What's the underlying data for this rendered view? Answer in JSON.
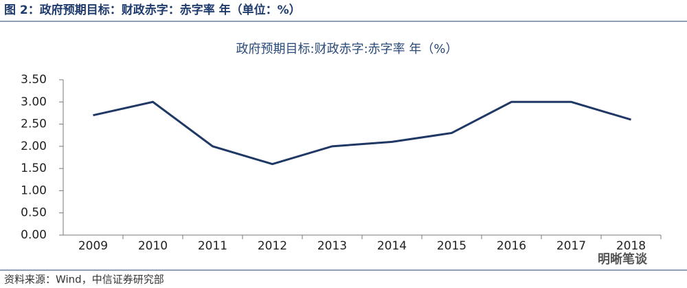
{
  "header": {
    "title": "图 2：政府预期目标：财政赤字：赤字率 年（单位：%）"
  },
  "chart_data": {
    "type": "line",
    "title": "政府预期目标:财政赤字:赤字率 年（%）",
    "categories": [
      "2009",
      "2010",
      "2011",
      "2012",
      "2013",
      "2014",
      "2015",
      "2016",
      "2017",
      "2018"
    ],
    "series": [
      {
        "color": "#1f3864",
        "values": [
          2.7,
          3.0,
          2.0,
          1.6,
          2.0,
          2.1,
          2.3,
          3.0,
          3.0,
          2.6
        ]
      }
    ],
    "ylim": [
      0,
      3.5
    ],
    "yticks": [
      {
        "value": 0,
        "label": "0.00"
      },
      {
        "value": 0.5,
        "label": "0.50"
      },
      {
        "value": 1,
        "label": "1.00"
      },
      {
        "value": 1.5,
        "label": "1.50"
      },
      {
        "value": 2,
        "label": "2.00"
      },
      {
        "value": 2.5,
        "label": "2.50"
      },
      {
        "value": 3,
        "label": "3.00"
      },
      {
        "value": 3.5,
        "label": "3.50"
      }
    ],
    "grid": false
  },
  "footer": {
    "source": "资料来源：Wind，中信证券研究部",
    "watermark": "明晰笔谈"
  }
}
